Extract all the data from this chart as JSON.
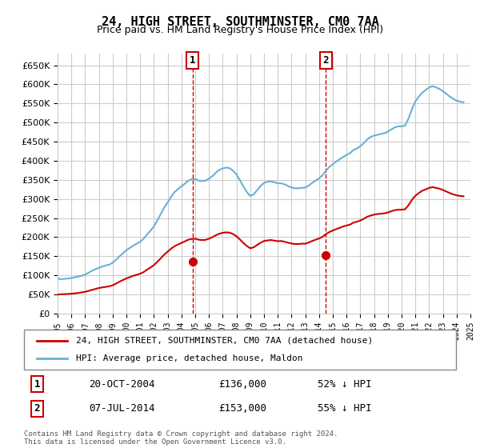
{
  "title": "24, HIGH STREET, SOUTHMINSTER, CM0 7AA",
  "subtitle": "Price paid vs. HM Land Registry's House Price Index (HPI)",
  "footer": "Contains HM Land Registry data © Crown copyright and database right 2024.\nThis data is licensed under the Open Government Licence v3.0.",
  "legend_line1": "24, HIGH STREET, SOUTHMINSTER, CM0 7AA (detached house)",
  "legend_line2": "HPI: Average price, detached house, Maldon",
  "annotation1_label": "1",
  "annotation1_date": "20-OCT-2004",
  "annotation1_price": "£136,000",
  "annotation1_hpi": "52% ↓ HPI",
  "annotation2_label": "2",
  "annotation2_date": "07-JUL-2014",
  "annotation2_price": "£153,000",
  "annotation2_hpi": "55% ↓ HPI",
  "hpi_color": "#6ab0d4",
  "price_color": "#cc0000",
  "marker_color": "#cc0000",
  "vline_color": "#cc0000",
  "ylim": [
    0,
    680000
  ],
  "yticks": [
    0,
    50000,
    100000,
    150000,
    200000,
    250000,
    300000,
    350000,
    400000,
    450000,
    500000,
    550000,
    600000,
    650000
  ],
  "background_color": "#ffffff",
  "grid_color": "#cccccc",
  "hpi_data": {
    "years": [
      1995.0,
      1995.25,
      1995.5,
      1995.75,
      1996.0,
      1996.25,
      1996.5,
      1996.75,
      1997.0,
      1997.25,
      1997.5,
      1997.75,
      1998.0,
      1998.25,
      1998.5,
      1998.75,
      1999.0,
      1999.25,
      1999.5,
      1999.75,
      2000.0,
      2000.25,
      2000.5,
      2000.75,
      2001.0,
      2001.25,
      2001.5,
      2001.75,
      2002.0,
      2002.25,
      2002.5,
      2002.75,
      2003.0,
      2003.25,
      2003.5,
      2003.75,
      2004.0,
      2004.25,
      2004.5,
      2004.75,
      2005.0,
      2005.25,
      2005.5,
      2005.75,
      2006.0,
      2006.25,
      2006.5,
      2006.75,
      2007.0,
      2007.25,
      2007.5,
      2007.75,
      2008.0,
      2008.25,
      2008.5,
      2008.75,
      2009.0,
      2009.25,
      2009.5,
      2009.75,
      2010.0,
      2010.25,
      2010.5,
      2010.75,
      2011.0,
      2011.25,
      2011.5,
      2011.75,
      2012.0,
      2012.25,
      2012.5,
      2012.75,
      2013.0,
      2013.25,
      2013.5,
      2013.75,
      2014.0,
      2014.25,
      2014.5,
      2014.75,
      2015.0,
      2015.25,
      2015.5,
      2015.75,
      2016.0,
      2016.25,
      2016.5,
      2016.75,
      2017.0,
      2017.25,
      2017.5,
      2017.75,
      2018.0,
      2018.25,
      2018.5,
      2018.75,
      2019.0,
      2019.25,
      2019.5,
      2019.75,
      2020.0,
      2020.25,
      2020.5,
      2020.75,
      2021.0,
      2021.25,
      2021.5,
      2021.75,
      2022.0,
      2022.25,
      2022.5,
      2022.75,
      2023.0,
      2023.25,
      2023.5,
      2023.75,
      2024.0,
      2024.25,
      2024.5
    ],
    "values": [
      92000,
      90000,
      91000,
      92000,
      93000,
      95000,
      97000,
      99000,
      102000,
      107000,
      112000,
      116000,
      120000,
      123000,
      126000,
      128000,
      133000,
      141000,
      150000,
      158000,
      166000,
      172000,
      178000,
      183000,
      188000,
      196000,
      207000,
      217000,
      228000,
      244000,
      261000,
      278000,
      291000,
      306000,
      318000,
      326000,
      333000,
      340000,
      348000,
      352000,
      352000,
      348000,
      347000,
      348000,
      353000,
      360000,
      369000,
      376000,
      380000,
      382000,
      381000,
      374000,
      364000,
      349000,
      333000,
      318000,
      308000,
      312000,
      323000,
      334000,
      342000,
      345000,
      346000,
      344000,
      341000,
      341000,
      338000,
      334000,
      330000,
      328000,
      328000,
      329000,
      330000,
      335000,
      342000,
      348000,
      354000,
      362000,
      374000,
      384000,
      391000,
      398000,
      404000,
      410000,
      415000,
      420000,
      428000,
      432000,
      438000,
      446000,
      456000,
      462000,
      466000,
      468000,
      470000,
      472000,
      476000,
      482000,
      487000,
      490000,
      490000,
      492000,
      510000,
      535000,
      555000,
      568000,
      578000,
      585000,
      592000,
      595000,
      592000,
      588000,
      582000,
      575000,
      568000,
      562000,
      557000,
      555000,
      553000
    ]
  },
  "price_data": {
    "years": [
      1995.0,
      1995.25,
      1995.5,
      1995.75,
      1996.0,
      1996.25,
      1996.5,
      1996.75,
      1997.0,
      1997.25,
      1997.5,
      1997.75,
      1998.0,
      1998.25,
      1998.5,
      1998.75,
      1999.0,
      1999.25,
      1999.5,
      1999.75,
      2000.0,
      2000.25,
      2000.5,
      2000.75,
      2001.0,
      2001.25,
      2001.5,
      2001.75,
      2002.0,
      2002.25,
      2002.5,
      2002.75,
      2003.0,
      2003.25,
      2003.5,
      2003.75,
      2004.0,
      2004.25,
      2004.5,
      2004.75,
      2005.0,
      2005.25,
      2005.5,
      2005.75,
      2006.0,
      2006.25,
      2006.5,
      2006.75,
      2007.0,
      2007.25,
      2007.5,
      2007.75,
      2008.0,
      2008.25,
      2008.5,
      2008.75,
      2009.0,
      2009.25,
      2009.5,
      2009.75,
      2010.0,
      2010.25,
      2010.5,
      2010.75,
      2011.0,
      2011.25,
      2011.5,
      2011.75,
      2012.0,
      2012.25,
      2012.5,
      2012.75,
      2013.0,
      2013.25,
      2013.5,
      2013.75,
      2014.0,
      2014.25,
      2014.5,
      2014.75,
      2015.0,
      2015.25,
      2015.5,
      2015.75,
      2016.0,
      2016.25,
      2016.5,
      2016.75,
      2017.0,
      2017.25,
      2017.5,
      2017.75,
      2018.0,
      2018.25,
      2018.5,
      2018.75,
      2019.0,
      2019.25,
      2019.5,
      2019.75,
      2020.0,
      2020.25,
      2020.5,
      2020.75,
      2021.0,
      2021.25,
      2021.5,
      2021.75,
      2022.0,
      2022.25,
      2022.5,
      2022.75,
      2023.0,
      2023.25,
      2023.5,
      2023.75,
      2024.0,
      2024.25,
      2024.5
    ],
    "values": [
      50000,
      50500,
      51000,
      51500,
      52000,
      53000,
      54000,
      55500,
      57000,
      59500,
      62000,
      64500,
      67000,
      68500,
      70000,
      71500,
      74000,
      78500,
      83500,
      88000,
      92000,
      95500,
      99000,
      101500,
      104500,
      108500,
      115000,
      120500,
      127000,
      135500,
      145000,
      154500,
      162000,
      170000,
      176500,
      181000,
      185000,
      189000,
      193500,
      195500,
      196000,
      193500,
      192500,
      193000,
      196000,
      200000,
      205000,
      209000,
      211500,
      212500,
      212000,
      208000,
      202500,
      194000,
      185000,
      177000,
      171000,
      173500,
      179500,
      185500,
      190000,
      191500,
      192500,
      191000,
      189500,
      190000,
      188000,
      185500,
      183500,
      182000,
      182000,
      183000,
      183000,
      186000,
      190000,
      193500,
      196500,
      201000,
      208000,
      213500,
      217500,
      221000,
      224500,
      228000,
      230500,
      233000,
      238000,
      240500,
      243500,
      248000,
      253500,
      256500,
      259000,
      260500,
      261500,
      262500,
      264500,
      268000,
      270500,
      272000,
      272000,
      273000,
      283500,
      297500,
      308500,
      315500,
      321500,
      325000,
      329000,
      331000,
      329000,
      327000,
      323500,
      319500,
      315500,
      312000,
      309500,
      308000,
      307000
    ]
  },
  "sale1_year": 2004.8,
  "sale1_price": 136000,
  "sale2_year": 2014.5,
  "sale2_price": 153000,
  "xmin": 1995,
  "xmax": 2025
}
